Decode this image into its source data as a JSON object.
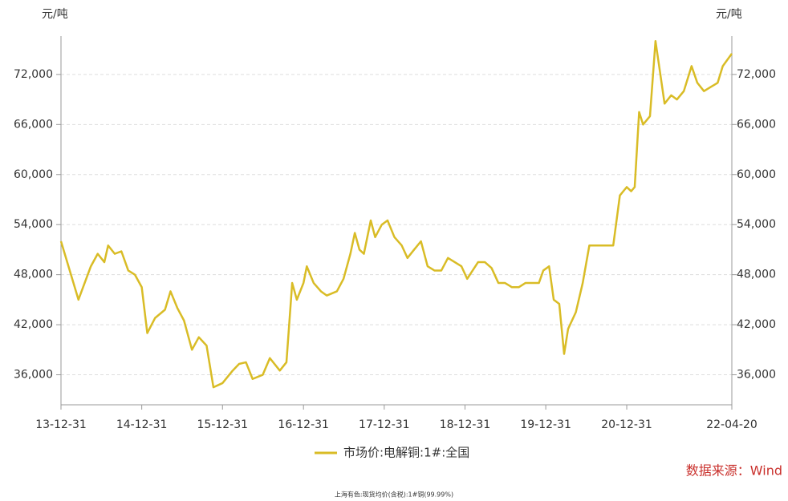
{
  "chart_data": {
    "type": "line",
    "y_label": "元/吨",
    "y2_label": "元/吨",
    "source": "数据来源：Wind",
    "footnote": "上海有色:现货均价(含税):1#铜(99.99%)",
    "x": [
      "13-12-31",
      "14-03-20",
      "14-05-15",
      "14-06-15",
      "14-07-15",
      "14-08-01",
      "14-08-31",
      "14-09-30",
      "14-10-31",
      "14-11-30",
      "14-12-31",
      "15-01-25",
      "15-03-01",
      "15-04-15",
      "15-05-10",
      "15-06-10",
      "15-07-10",
      "15-08-15",
      "15-09-15",
      "15-10-20",
      "15-11-20",
      "15-12-31",
      "16-02-15",
      "16-03-15",
      "16-04-15",
      "16-05-15",
      "16-06-30",
      "16-08-01",
      "16-09-15",
      "16-10-15",
      "16-11-10",
      "16-12-01",
      "16-12-31",
      "17-01-15",
      "17-02-15",
      "17-03-20",
      "17-04-15",
      "17-05-31",
      "17-06-30",
      "17-07-31",
      "17-08-20",
      "17-09-10",
      "17-09-30",
      "17-10-31",
      "17-11-20",
      "17-12-20",
      "18-01-15",
      "18-02-15",
      "18-03-20",
      "18-04-15",
      "18-05-15",
      "18-06-15",
      "18-07-15",
      "18-08-15",
      "18-09-15",
      "18-10-15",
      "18-11-15",
      "18-12-15",
      "19-01-10",
      "19-02-28",
      "19-03-31",
      "19-04-30",
      "19-05-31",
      "19-06-30",
      "19-07-31",
      "19-08-31",
      "19-09-30",
      "19-10-31",
      "19-11-30",
      "19-12-20",
      "20-01-15",
      "20-02-05",
      "20-03-01",
      "20-03-23",
      "20-04-10",
      "20-05-15",
      "20-06-15",
      "20-07-15",
      "20-08-15",
      "20-09-15",
      "20-10-31",
      "20-11-30",
      "20-12-31",
      "21-01-20",
      "21-02-05",
      "21-02-25",
      "21-03-15",
      "21-04-15",
      "21-05-10",
      "21-06-01",
      "21-06-20",
      "21-07-20",
      "21-08-15",
      "21-09-15",
      "21-10-20",
      "21-11-15",
      "21-12-15",
      "22-01-15",
      "22-02-15",
      "22-03-10",
      "22-04-20"
    ],
    "series": [
      {
        "name": "市场价:电解铜:1#:全国",
        "color": "#d9bc26",
        "values": [
          52000,
          45000,
          49000,
          50500,
          49500,
          51500,
          50500,
          50800,
          48500,
          48000,
          46500,
          41000,
          42800,
          43800,
          46000,
          44000,
          42500,
          39000,
          40500,
          39500,
          34500,
          35000,
          36500,
          37300,
          37500,
          35500,
          36000,
          38000,
          36500,
          37500,
          47000,
          45000,
          47000,
          49000,
          47000,
          46000,
          45500,
          46000,
          47500,
          50500,
          53000,
          51000,
          50500,
          54500,
          52500,
          54000,
          54500,
          52500,
          51500,
          50000,
          51000,
          52000,
          49000,
          48500,
          48500,
          50000,
          49500,
          49000,
          47500,
          49500,
          49500,
          48800,
          47000,
          47000,
          46500,
          46500,
          47000,
          47000,
          47000,
          48500,
          49000,
          45000,
          44500,
          38500,
          41500,
          43500,
          47000,
          51500,
          51500,
          51500,
          51500,
          57500,
          58500,
          58000,
          58500,
          67500,
          66000,
          67000,
          76000,
          72000,
          68500,
          69500,
          69000,
          70000,
          73000,
          71000,
          70000,
          70500,
          71000,
          73000,
          74500
        ]
      }
    ],
    "xlim": [
      "13-12-31",
      "22-04-20"
    ],
    "xticks": [
      "13-12-31",
      "14-12-31",
      "15-12-31",
      "16-12-31",
      "17-12-31",
      "18-12-31",
      "19-12-31",
      "20-12-31",
      "22-04-20"
    ],
    "ylim": [
      32400,
      76600
    ],
    "yticks": [
      {
        "value": 36000,
        "label": "36,000"
      },
      {
        "value": 42000,
        "label": "42,000"
      },
      {
        "value": 48000,
        "label": "48,000"
      },
      {
        "value": 54000,
        "label": "54,000"
      },
      {
        "value": 60000,
        "label": "60,000"
      },
      {
        "value": 66000,
        "label": "66,000"
      },
      {
        "value": 72000,
        "label": "72,000"
      }
    ],
    "y2lim": [
      32400,
      76600
    ],
    "y2ticks": [
      {
        "value": 36000,
        "label": "36,000"
      },
      {
        "value": 42000,
        "label": "42,000"
      },
      {
        "value": 48000,
        "label": "48,000"
      },
      {
        "value": 54000,
        "label": "54,000"
      },
      {
        "value": 60000,
        "label": "60,000"
      },
      {
        "value": 66000,
        "label": "66,000"
      },
      {
        "value": 72000,
        "label": "72,000"
      }
    ],
    "grid": true
  }
}
